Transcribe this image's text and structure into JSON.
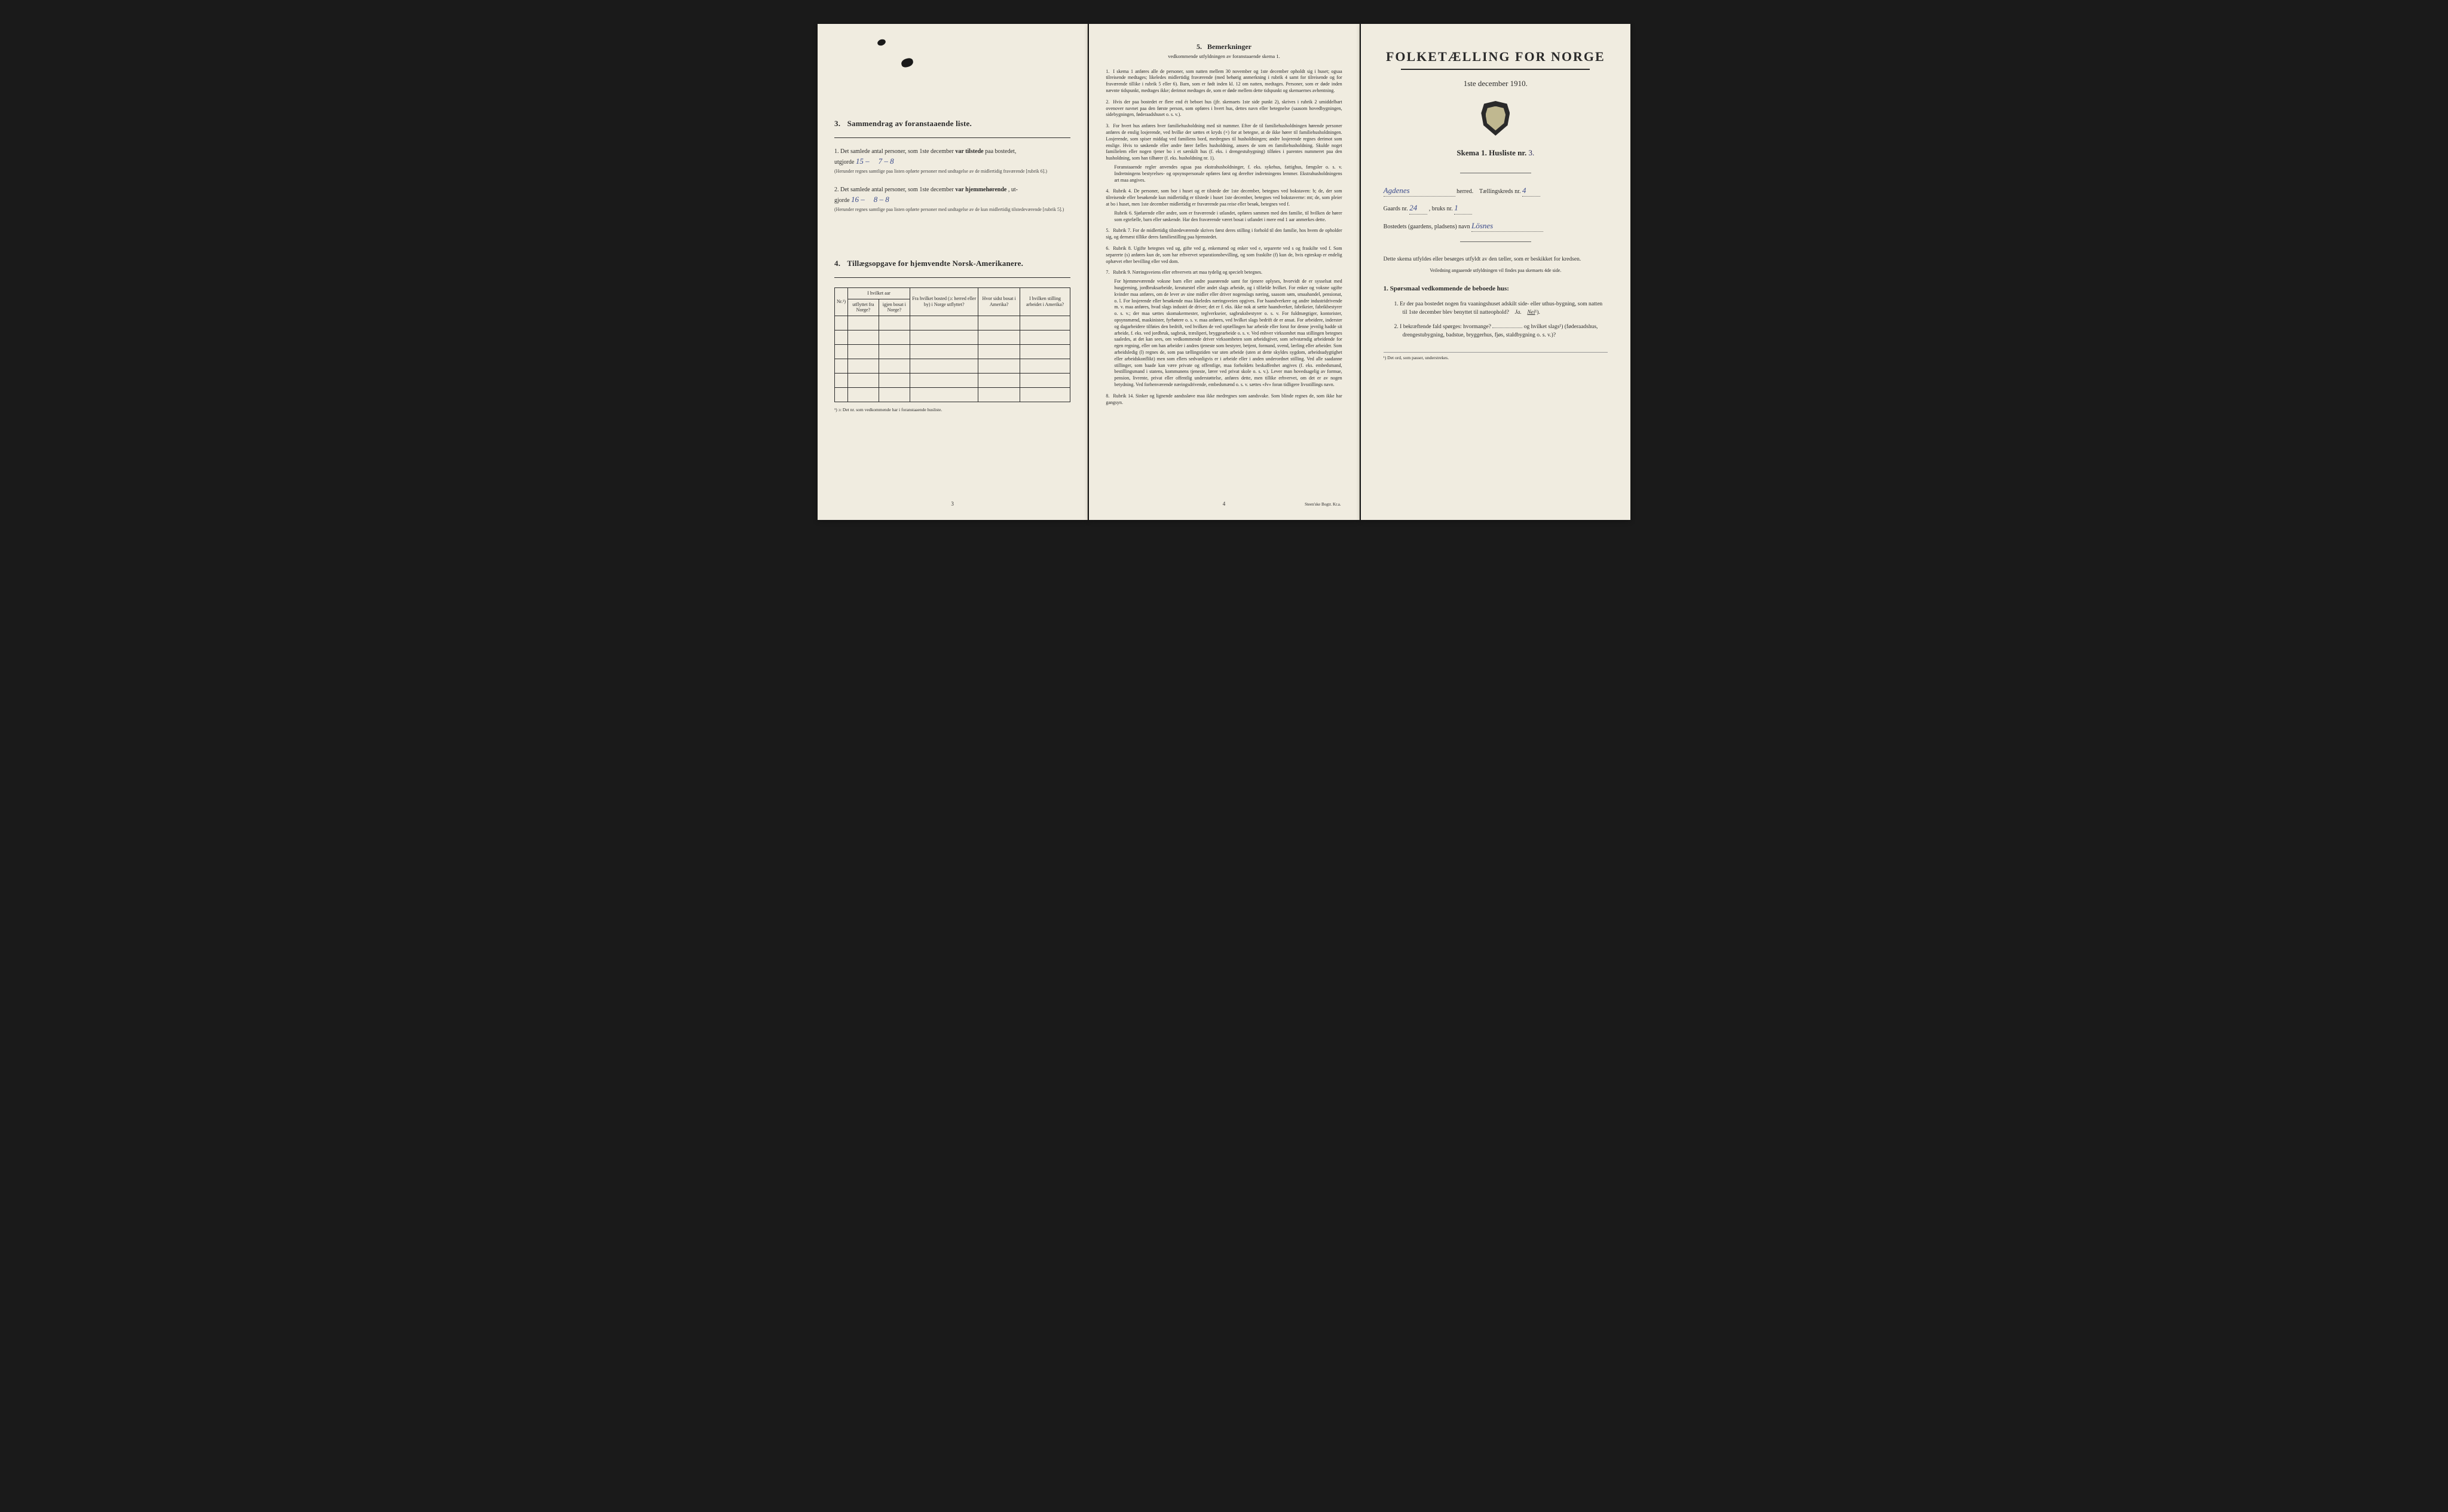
{
  "background_color": "#f0ece0",
  "text_color": "#2a2a2a",
  "handwriting_color": "#3a4a8a",
  "left": {
    "section3_title": "Sammendrag av foranstaaende liste.",
    "section3_num": "3.",
    "q1_prefix": "1.  Det samlede antal personer, som 1ste december",
    "q1_bold": "var tilstede",
    "q1_suffix": "paa bostedet,",
    "q1_line2": "utgjorde",
    "q1_value": "15 –",
    "q1_split": "7 – 8",
    "q1_note": "(Herunder regnes samtlige paa listen opførte personer med undtagelse av de midlertidig fraværende [rubrik 6].)",
    "q2_prefix": "2.  Det samlede antal personer, som 1ste december",
    "q2_bold": "var hjemmehørende",
    "q2_suffix": ", ut-",
    "q2_line2": "gjorde",
    "q2_value": "16 –",
    "q2_split": "8 – 8",
    "q2_note": "(Herunder regnes samtlige paa listen opførte personer med undtagelse av de kun midlertidig tilstedeværende [rubrik 5].)",
    "section4_num": "4.",
    "section4_title": "Tillægsopgave for hjemvendte Norsk-Amerikanere.",
    "table": {
      "headers": {
        "nr": "Nr.¹)",
        "year_group": "I hvilket aar",
        "out": "utflyttet fra Norge?",
        "back": "igjen bosat i Norge?",
        "from_where": "Fra hvilket bosted (ɔ: herred eller by) i Norge utflyttet?",
        "last_america": "Hvor sidst bosat i Amerika?",
        "occupation": "I hvilken stilling arbeidet i Amerika?"
      },
      "row_count": 6
    },
    "footnote": "¹) ɔ: Det nr. som vedkommende har i foranstaaende husliste.",
    "page_num": "3"
  },
  "middle": {
    "title_num": "5.",
    "title": "Bemerkninger",
    "subtitle": "vedkommende utfyldningen av foranstaaende skema 1.",
    "items": [
      {
        "n": "1.",
        "text": "I skema 1 anføres alle de personer, som natten mellem 30 november og 1ste december opholdt sig i huset; ogsaa tilreisende medtages; likeledes midlertidig fraværende (med behørig anmerkning i rubrik 4 samt for tilreisende og for fraværende tillike i rubrik 5 eller 6). Barn, som er født inden kl. 12 om natten, medtages. Personer, som er døde inden nævnte tidspunkt, medtages ikke; derimot medtages de, som er døde mellem dette tidspunkt og skemaernes avhentning."
      },
      {
        "n": "2.",
        "text": "Hvis der paa bostedet er flere end ét beboet hus (jfr. skemaets 1ste side punkt 2), skrives i rubrik 2 umiddelbart ovenover navnet paa den første person, som opføres i hvert hus, dettes navn eller betegnelse (saasom hovedbygningen, sidebygningen, føderaadshuset o. s. v.)."
      },
      {
        "n": "3.",
        "text": "For hvert hus anføres hver familiehusholdning med sit nummer. Efter de til familiehusholdningen hørende personer anføres de enslig losjerende, ved hvilke der sættes et kryds (×) for at betegne, at de ikke hører til familiehusholdningen. Losjerende, som spiser middag ved familiens bord, medregnes til husholdningen; andre losjerende regnes derimot som enslige. Hvis to søskende eller andre fører fælles husholdning, ansees de som en familiehusholdning. Skulde noget familielem eller nogen tjener bo i et særskilt hus (f. eks. i drengestubygning) tilføies i parentes nummeret paa den husholdning, som han tilhører (f. eks. husholdning nr. 1).",
        "sub": "Foranstaaende regler anvendes ogsaa paa ekstrahusholdninger, f. eks. sykehus, fattighus, fængsler o. s. v. Indretningens bestyrelses- og opsynspersonale opføres først og derefter indretningens lemmer. Ekstrahusholdningens art maa angives."
      },
      {
        "n": "4.",
        "text": "Rubrik 4. De personer, som bor i huset og er tilstede der 1ste december, betegnes ved bokstaven: b; de, der som tilreisende eller besøkende kun midlertidig er tilstede i huset 1ste december, betegnes ved bokstaverne: mt; de, som pleier at bo i huset, men 1ste december midlertidig er fraværende paa reise eller besøk, betegnes ved f.",
        "sub": "Rubrik 6. Sjøfarende eller andre, som er fraværende i utlandet, opføres sammen med den familie, til hvilken de hører som egtefælle, barn eller søskende.\nHar den fraværende været bosat i utlandet i mere end 1 aar anmerkes dette."
      },
      {
        "n": "5.",
        "text": "Rubrik 7. For de midlertidig tilstedeværende skrives først deres stilling i forhold til den familie, hos hvem de opholder sig, og dernæst tillike deres familiestilling paa hjemstedet."
      },
      {
        "n": "6.",
        "text": "Rubrik 8. Ugifte betegnes ved ug, gifte ved g, enkemænd og enker ved e, separerte ved s og fraskilte ved f. Som separerte (s) anføres kun de, som har erhvervet separationsbevilling, og som fraskilte (f) kun de, hvis egteskap er endelig ophævet efter bevilling eller ved dom."
      },
      {
        "n": "7.",
        "text": "Rubrik 9. Næringsveiens eller erhvervets art maa tydelig og specielt betegnes.",
        "sub": "For hjemmeværende voksne barn eller andre paarørende samt for tjenere oplyses, hvorvidt de er sysselsat med husgjerning, jordbruksarbeide, kreaturstel eller andet slags arbeide, og i tilfælde hvilket. For enker og voksne ugifte kvinder maa anføres, om de lever av sine midler eller driver nogenslags næring, saasom søm, smaahandel, pensionat, o. l.\nFor losjerende eller besøkende maa likeledes næringsveien opgives.\nFor haandverkere og andre industridrivende m. v. maa anføres, hvad slags industri de driver; det er f. eks. ikke nok at sætte haandverker, fabrikeier, fabrikbestyrer o. s. v.; der maa sættes skomakermester, teglverkseier, sagbruksbestyrer o. s. v.\nFor fuldmægtiger, kontorister, opsynsmænd, maskinister, fyrbøtere o. s. v. maa anføres, ved hvilket slags bedrift de er ansat.\nFor arbeidere, inderster og dagarbeidere tilføies den bedrift, ved hvilken de ved optællingen har arbeide eller forut for denne jevnlig hadde sit arbeide, f. eks. ved jordbruk, sagbruk, træsliperi, bryggearbeide o. s. v.\nVed enhver virksomhet maa stillingen betegnes saaledes, at det kan sees, om vedkommende driver virksomheten som arbeidsgiver, som selvstændig arbeidende for egen regning, eller om han arbeider i andres tjeneste som bestyrer, betjent, formand, svend, lærling eller arbeider.\nSom arbeidsledig (l) regnes de, som paa tællingstiden var uten arbeide (uten at dette skyldes sygdom, arbeidsudygtighet eller arbeidskonflikt) men som ellers sedvanligvis er i arbeide eller i anden underordnet stilling.\nVed alle saadanne stillinger, som baade kan være private og offentlige, maa forholdets beskaffenhet angives (f. eks. embedsmand, bestillingsmand i statens, kommunens tjeneste, lærer ved privat skole o. s. v.).\nLever man hovedsagelig av formue, pension, livrente, privat eller offentlig understøttelse, anføres dette, men tillike erhvervet, om det er av nogen betydning.\nVed forhenværende næringsdrivende, embedsmænd o. s. v. sættes «fv» foran tidligere livsstillings navn."
      },
      {
        "n": "8.",
        "text": "Rubrik 14. Sinker og lignende aandssløve maa ikke medregnes som aandsvake.\nSom blinde regnes de, som ikke har gangsyn."
      }
    ],
    "page_num": "4",
    "printer": "Steen'ske Bogtr.  Kr.a."
  },
  "right": {
    "main_title": "FOLKETÆLLING FOR NORGE",
    "date": "1ste december 1910.",
    "skema_label": "Skema 1.   Husliste nr.",
    "skema_nr": "3.",
    "herred_value": "Agdenes",
    "herred_label": "herred.",
    "kreds_label": "Tællingskreds nr.",
    "kreds_value": "4",
    "gaard_label": "Gaards nr.",
    "gaard_value": "24",
    "bruks_label": ", bruks nr.",
    "bruks_value": "1",
    "bosted_label": "Bostedets (gaardens, pladsens) navn",
    "bosted_value": "Lösnes",
    "instruction": "Dette skema utfyldes eller besørges utfyldt av den tæller, som er beskikket for kredsen.",
    "instruction_sub": "Veiledning angaaende utfyldningen vil findes paa skemaets 4de side.",
    "q_heading_num": "1.",
    "q_heading": "Spørsmaal vedkommende de beboede hus:",
    "q1_num": "1.",
    "q1_text": "Er der paa bostedet nogen fra vaaningshuset adskilt side- eller uthus-bygning, som natten til 1ste december blev benyttet til natteophold?",
    "q1_ja": "Ja.",
    "q1_nei": "Nei",
    "q1_sup": "¹).",
    "q2_num": "2.",
    "q2_text": "I bekræftende fald spørges: hvormange?",
    "q2_text2": "og hvilket slags¹) (føderaadshus, drengestubygning, badstue, bryggerhus, fjøs, staldbygning o. s. v.)?",
    "footnote": "¹) Det ord, som passer, understrekes."
  }
}
